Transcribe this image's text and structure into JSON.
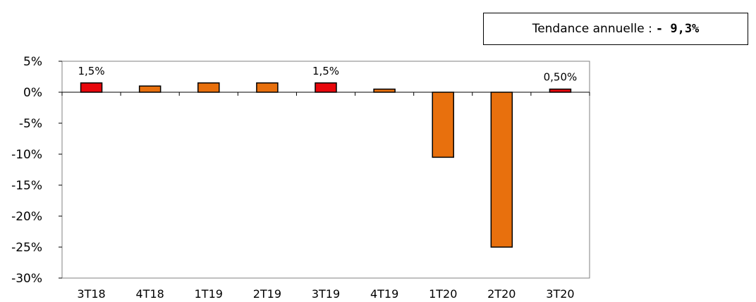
{
  "trend": {
    "label": "Tendance annuelle :",
    "value": "- 9,3%"
  },
  "chart_data": {
    "type": "bar",
    "title": "",
    "xlabel": "",
    "ylabel": "",
    "categories": [
      "3T18",
      "4T18",
      "1T19",
      "2T19",
      "3T19",
      "4T19",
      "1T20",
      "2T20",
      "3T20"
    ],
    "values": [
      1.5,
      1.0,
      1.5,
      1.5,
      1.5,
      0.5,
      -10.5,
      -25.0,
      0.5
    ],
    "bar_colors": [
      "#e8070c",
      "#e8700d",
      "#e8700d",
      "#e8700d",
      "#e8070c",
      "#e8700d",
      "#e8700d",
      "#e8700d",
      "#e8070c"
    ],
    "data_labels": [
      "1,5%",
      "",
      "",
      "",
      "1,5%",
      "",
      "",
      "",
      "0,50%"
    ],
    "ylim": [
      -30,
      5
    ],
    "yticks": [
      5,
      0,
      -5,
      -10,
      -15,
      -20,
      -25,
      -30
    ],
    "ytick_labels": [
      "5%",
      "0%",
      "-5%",
      "-10%",
      "-15%",
      "-20%",
      "-25%",
      "-30%"
    ],
    "grid": false,
    "legend": "none"
  }
}
